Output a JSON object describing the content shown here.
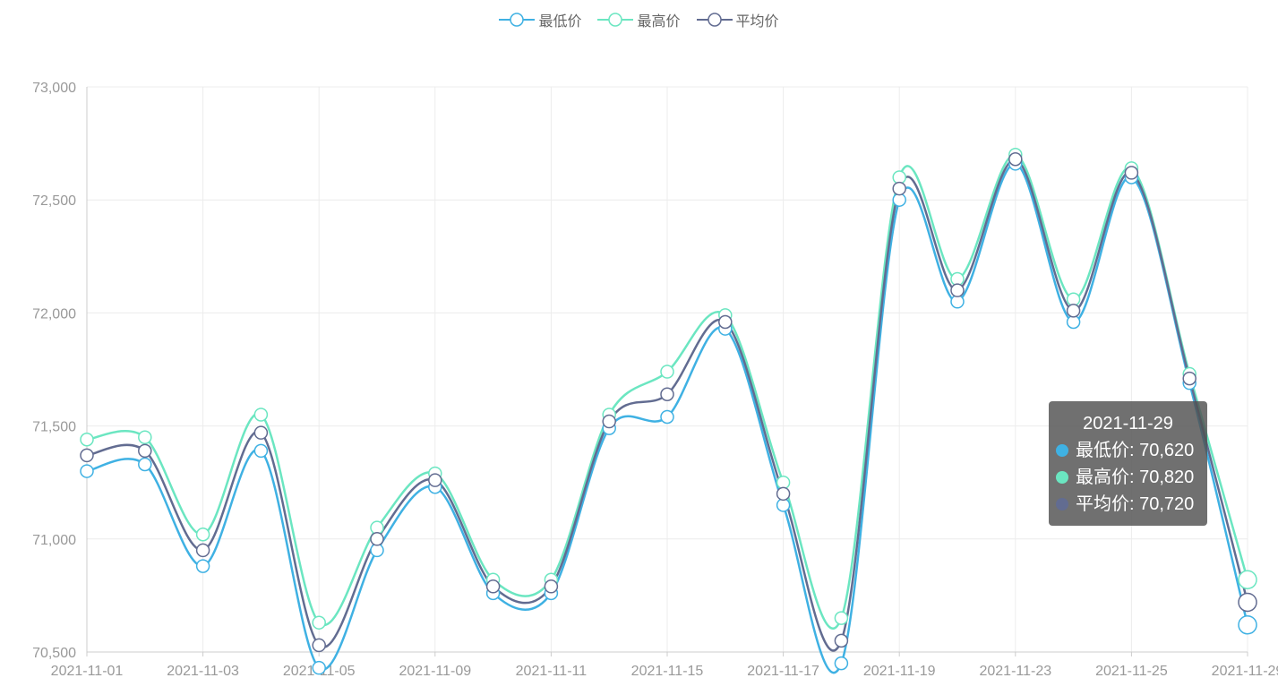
{
  "legend": [
    {
      "name": "最低价",
      "color": "#3fb1e3"
    },
    {
      "name": "最高价",
      "color": "#6be6c1"
    },
    {
      "name": "平均价",
      "color": "#626c91"
    }
  ],
  "chart_data": {
    "type": "line",
    "smooth": true,
    "x": [
      "2021-11-01",
      "2021-11-02",
      "2021-11-03",
      "2021-11-04",
      "2021-11-05",
      "2021-11-08",
      "2021-11-09",
      "2021-11-10",
      "2021-11-11",
      "2021-11-12",
      "2021-11-15",
      "2021-11-16",
      "2021-11-17",
      "2021-11-18",
      "2021-11-19",
      "2021-11-22",
      "2021-11-23",
      "2021-11-24",
      "2021-11-25",
      "2021-11-26",
      "2021-11-29"
    ],
    "x_tick_labels": [
      "2021-11-01",
      "2021-11-03",
      "2021-11-05",
      "2021-11-09",
      "2021-11-11",
      "2021-11-15",
      "2021-11-17",
      "2021-11-19",
      "2021-11-23",
      "2021-11-25",
      "2021-11-29"
    ],
    "ylim": [
      70500,
      73000
    ],
    "y_ticks": [
      70500,
      71000,
      71500,
      72000,
      72500,
      73000
    ],
    "y_tick_labels": [
      "70,500",
      "71,000",
      "71,500",
      "72,000",
      "72,500",
      "73,000"
    ],
    "grid": true,
    "legend_position": "top-center",
    "series": [
      {
        "name": "最低价",
        "color": "#3fb1e3",
        "values": [
          71300,
          71330,
          70880,
          71390,
          70430,
          70950,
          71230,
          70760,
          70760,
          71490,
          71540,
          71930,
          71150,
          70450,
          72500,
          72050,
          72660,
          71960,
          72600,
          71690,
          70620
        ]
      },
      {
        "name": "最高价",
        "color": "#6be6c1",
        "values": [
          71440,
          71450,
          71020,
          71550,
          70630,
          71050,
          71290,
          70820,
          70820,
          71550,
          71740,
          71990,
          71250,
          70650,
          72600,
          72150,
          72700,
          72060,
          72640,
          71730,
          70820
        ]
      },
      {
        "name": "平均价",
        "color": "#626c91",
        "values": [
          71370,
          71390,
          70950,
          71470,
          70530,
          71000,
          71260,
          70790,
          70790,
          71520,
          71640,
          71960,
          71200,
          70550,
          72550,
          72100,
          72680,
          72010,
          72620,
          71710,
          70720
        ]
      }
    ]
  },
  "tooltip": {
    "title": "2021-11-29",
    "rows": [
      {
        "label": "最低价: 70,620",
        "color": "#3fb1e3"
      },
      {
        "label": "最高价: 70,820",
        "color": "#6be6c1"
      },
      {
        "label": "平均价: 70,720",
        "color": "#626c91"
      }
    ]
  }
}
